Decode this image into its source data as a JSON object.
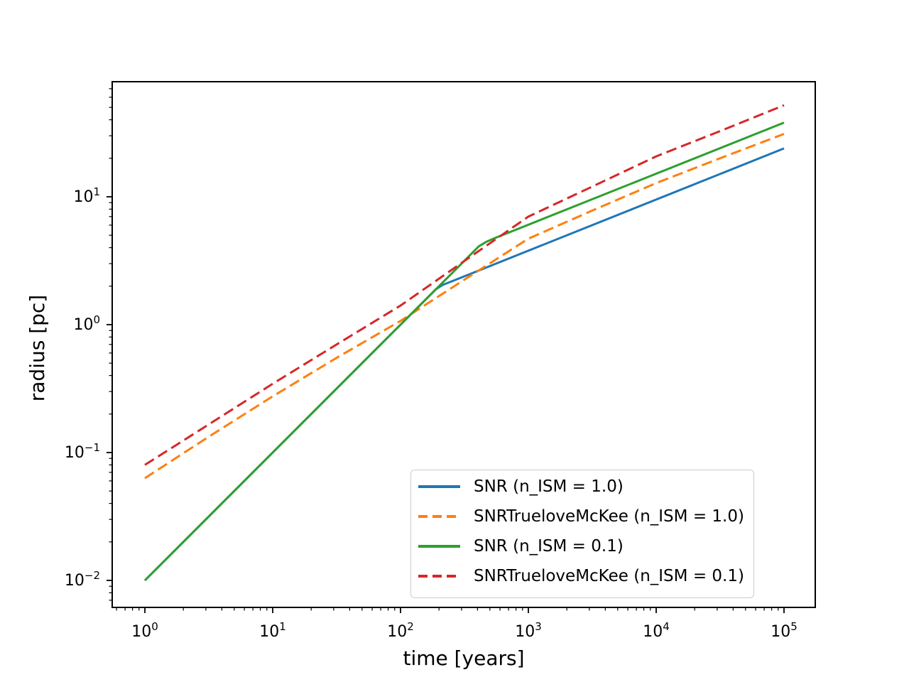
{
  "figure": {
    "background": "#ffffff",
    "title": ""
  },
  "chart_data": {
    "type": "line",
    "title": "",
    "xlabel": "time [years]",
    "ylabel": "radius [pc]",
    "x_scale": "log",
    "y_scale": "log",
    "xlim": [
      0.555,
      175600
    ],
    "ylim": [
      0.00615,
      79.4
    ],
    "x_major_tick_exponents": [
      0,
      1,
      2,
      3,
      4,
      5
    ],
    "y_major_tick_exponents": [
      -2,
      -1,
      0,
      1
    ],
    "minor_tick_subs": [
      2,
      3,
      4,
      5,
      6,
      7,
      8,
      9
    ],
    "grid": false,
    "legend_position": "lower right",
    "axis_color": "#000000",
    "series": [
      {
        "name": "SNR (n_ISM = 1.0)",
        "slug": "snr-nism-1-0",
        "color": "#1f77b4",
        "style": "solid",
        "points": [
          [
            1,
            0.01
          ],
          [
            190,
            1.9
          ],
          [
            215,
            2.05
          ],
          [
            260,
            2.21
          ],
          [
            100000,
            23.9
          ]
        ]
      },
      {
        "name": "SNRTrueloveMcKee (n_ISM = 1.0)",
        "slug": "snrtruelovemckee-nism-1-0",
        "color": "#ff7f0e",
        "style": "dashed",
        "points": [
          [
            1,
            0.063
          ],
          [
            3.16,
            0.133
          ],
          [
            10,
            0.275
          ],
          [
            31.6,
            0.55
          ],
          [
            100,
            1.07
          ],
          [
            316,
            2.25
          ],
          [
            1000,
            4.7
          ],
          [
            3160,
            7.8
          ],
          [
            10000,
            12.8
          ],
          [
            31600,
            20.0
          ],
          [
            100000,
            31
          ]
        ]
      },
      {
        "name": "SNR (n_ISM = 0.1)",
        "slug": "snr-nism-0-1",
        "color": "#2ca02c",
        "style": "solid",
        "points": [
          [
            1,
            0.01
          ],
          [
            410,
            4.1
          ],
          [
            470,
            4.45
          ],
          [
            560,
            4.8
          ],
          [
            700,
            5.24
          ],
          [
            100000,
            38
          ]
        ]
      },
      {
        "name": "SNRTrueloveMcKee (n_ISM = 0.1)",
        "slug": "snrtruelovemckee-nism-0-1",
        "color": "#d62728",
        "style": "dashed",
        "points": [
          [
            1,
            0.08
          ],
          [
            3.16,
            0.166
          ],
          [
            10,
            0.345
          ],
          [
            31.6,
            0.7
          ],
          [
            100,
            1.41
          ],
          [
            316,
            3.15
          ],
          [
            1000,
            7.0
          ],
          [
            3160,
            12.0
          ],
          [
            10000,
            20.7
          ],
          [
            31600,
            32.6
          ],
          [
            100000,
            52
          ]
        ]
      }
    ]
  }
}
